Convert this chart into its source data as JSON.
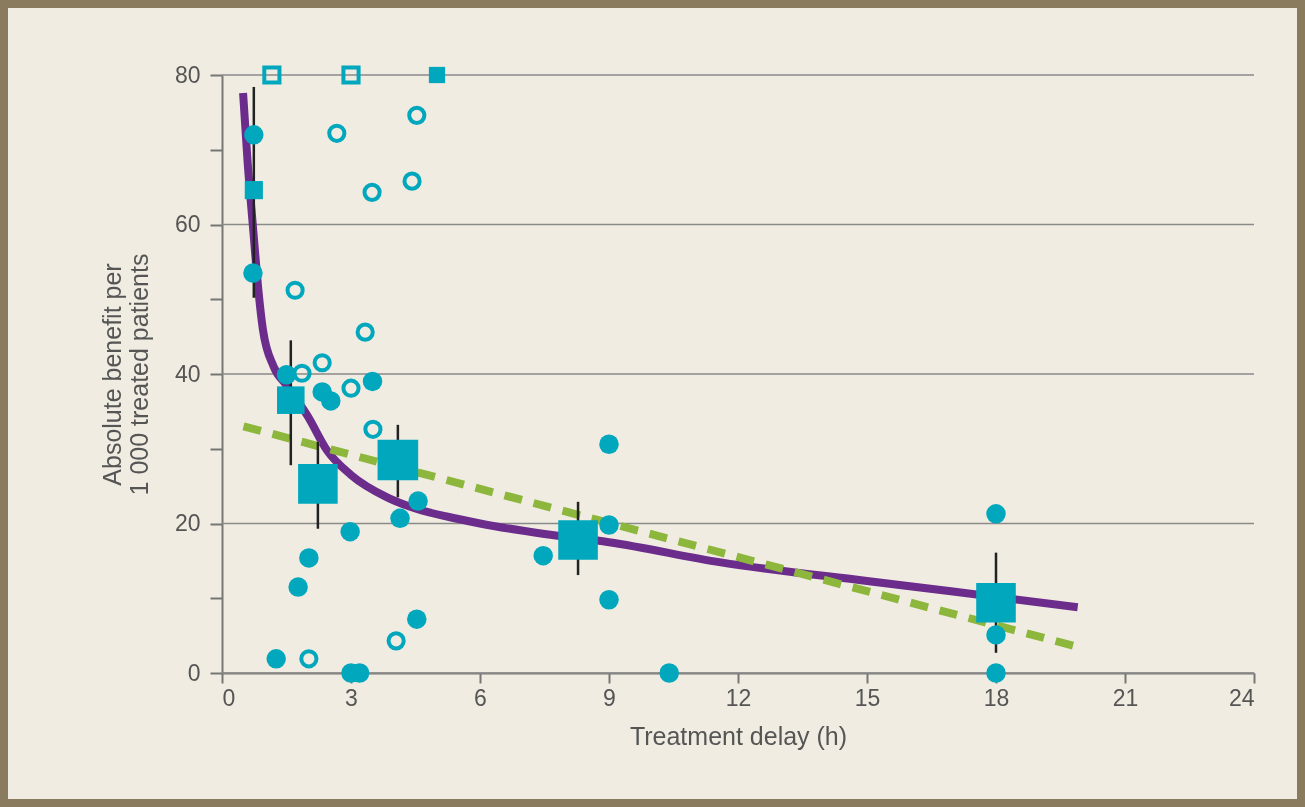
{
  "chart_data": {
    "type": "scatter",
    "xlabel": "Treatment delay (h)",
    "ylabel": "Absolute benefit per\n1 000 treated patients",
    "xlim": [
      0,
      24
    ],
    "xticks": [
      0,
      3,
      6,
      9,
      12,
      15,
      18,
      21,
      24
    ],
    "ylim": [
      0,
      80
    ],
    "yticks": [
      0,
      {
        "value": 10,
        "label": null
      },
      20,
      {
        "value": 30,
        "label": null
      },
      40,
      {
        "value": 50,
        "label": null
      },
      60,
      {
        "value": 70,
        "label": null
      },
      80
    ],
    "grid": "y",
    "series": [
      {
        "type": "line",
        "color": "#6b2c8c",
        "line_style": "solid",
        "marker": "none",
        "x": [
          0.49,
          0.6,
          0.72,
          0.85,
          0.95,
          1.2,
          1.5,
          2.0,
          2.44,
          3,
          3.84,
          4.5,
          5.5,
          6,
          7.5,
          9,
          11.6,
          15,
          17,
          19.9
        ],
        "values": [
          77.6,
          68,
          59.7,
          51,
          46,
          41,
          38.5,
          34.3,
          29.8,
          26.5,
          23.5,
          22,
          20.6,
          20,
          18.6,
          17.5,
          14.8,
          12.3,
          10.9,
          8.8
        ]
      },
      {
        "type": "line",
        "color": "#8cb63c",
        "line_style": "dashed",
        "marker": "none",
        "x": [
          0.5,
          19.9
        ],
        "values": [
          33,
          3.5
        ]
      },
      {
        "color": "#00a7bd",
        "marker": "circle",
        "x": [
          0.74,
          0.72,
          1.5,
          2.33,
          2.53,
          3.5,
          4.56,
          4.14,
          2.98,
          2.02,
          1.77,
          1.26,
          3,
          3.2,
          4.53,
          9,
          9,
          7.47,
          9,
          10.4,
          18,
          18,
          18
        ],
        "values": [
          72,
          53.5,
          39.9,
          37.6,
          36.4,
          39,
          23,
          20.7,
          18.9,
          15.4,
          11.5,
          1.9,
          0,
          0,
          7.2,
          30.6,
          19.8,
          15.7,
          9.8,
          0,
          21.3,
          5.1,
          0
        ]
      },
      {
        "color": "#00a7bd",
        "marker": "circle-open",
        "x": [
          2.67,
          4.53,
          4.42,
          3.49,
          1.7,
          1.86,
          2.33,
          3.33,
          3,
          3.51,
          4.05,
          2.02
        ],
        "values": [
          72.2,
          74.6,
          65.8,
          64.3,
          51.2,
          40.1,
          41.5,
          45.6,
          38.1,
          32.6,
          4.3,
          1.9
        ]
      },
      {
        "color": "#00a7bd",
        "marker": "square-open",
        "x": [
          1.16,
          3
        ],
        "values": [
          80,
          80
        ]
      },
      {
        "type": "bubble",
        "color": "#00a7bd",
        "marker": "square",
        "x": [
          0.74,
          1.6,
          2.23,
          4.09,
          8.28,
          18,
          5
        ],
        "values": [
          64.6,
          36.5,
          25.3,
          28.5,
          17.8,
          9.4,
          80
        ],
        "sizes": [
          0.2,
          0.46,
          0.95,
          1,
          0.95,
          0.95,
          0.16
        ],
        "errors": [
          [
            50.2,
            78.4
          ],
          [
            27.8,
            44.5
          ],
          [
            19.3,
            30.9
          ],
          [
            23.5,
            33.2
          ],
          [
            13.1,
            22.9
          ],
          [
            2.7,
            16.1
          ],
          null
        ]
      }
    ]
  }
}
